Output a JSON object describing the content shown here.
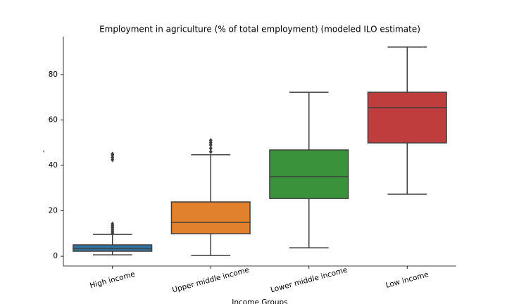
{
  "chart_data": {
    "type": "box",
    "title": "Employment in agriculture (% of total employment) (modeled ILO estimate)",
    "xlabel": "Income Groups",
    "ylabel": "-",
    "categories": [
      "High income",
      "Upper middle income",
      "Lower middle income",
      "Low income"
    ],
    "colors": [
      "#3274a1",
      "#e1812c",
      "#3a923a",
      "#c03d3e"
    ],
    "boxes": [
      {
        "min": 0.6,
        "q1": 2.2,
        "median": 3.4,
        "q3": 5.0,
        "max": 9.6,
        "outliers": [
          10.2,
          11,
          11.8,
          12.6,
          13.4,
          14.2,
          42.5,
          43.5,
          44.5,
          45
        ]
      },
      {
        "min": 0.3,
        "q1": 9.9,
        "median": 14.9,
        "q3": 23.9,
        "max": 44.7,
        "outliers": [
          46,
          47.5,
          49,
          50,
          51
        ]
      },
      {
        "min": 3.7,
        "q1": 25.4,
        "median": 35.0,
        "q3": 46.8,
        "max": 72.2,
        "outliers": []
      },
      {
        "min": 27.3,
        "q1": 49.9,
        "median": 65.4,
        "q3": 72.2,
        "max": 92.1,
        "outliers": []
      }
    ],
    "ylim": [
      -4.3,
      96.7
    ],
    "yticks": [
      0,
      20,
      40,
      60,
      80
    ],
    "grid": false
  }
}
